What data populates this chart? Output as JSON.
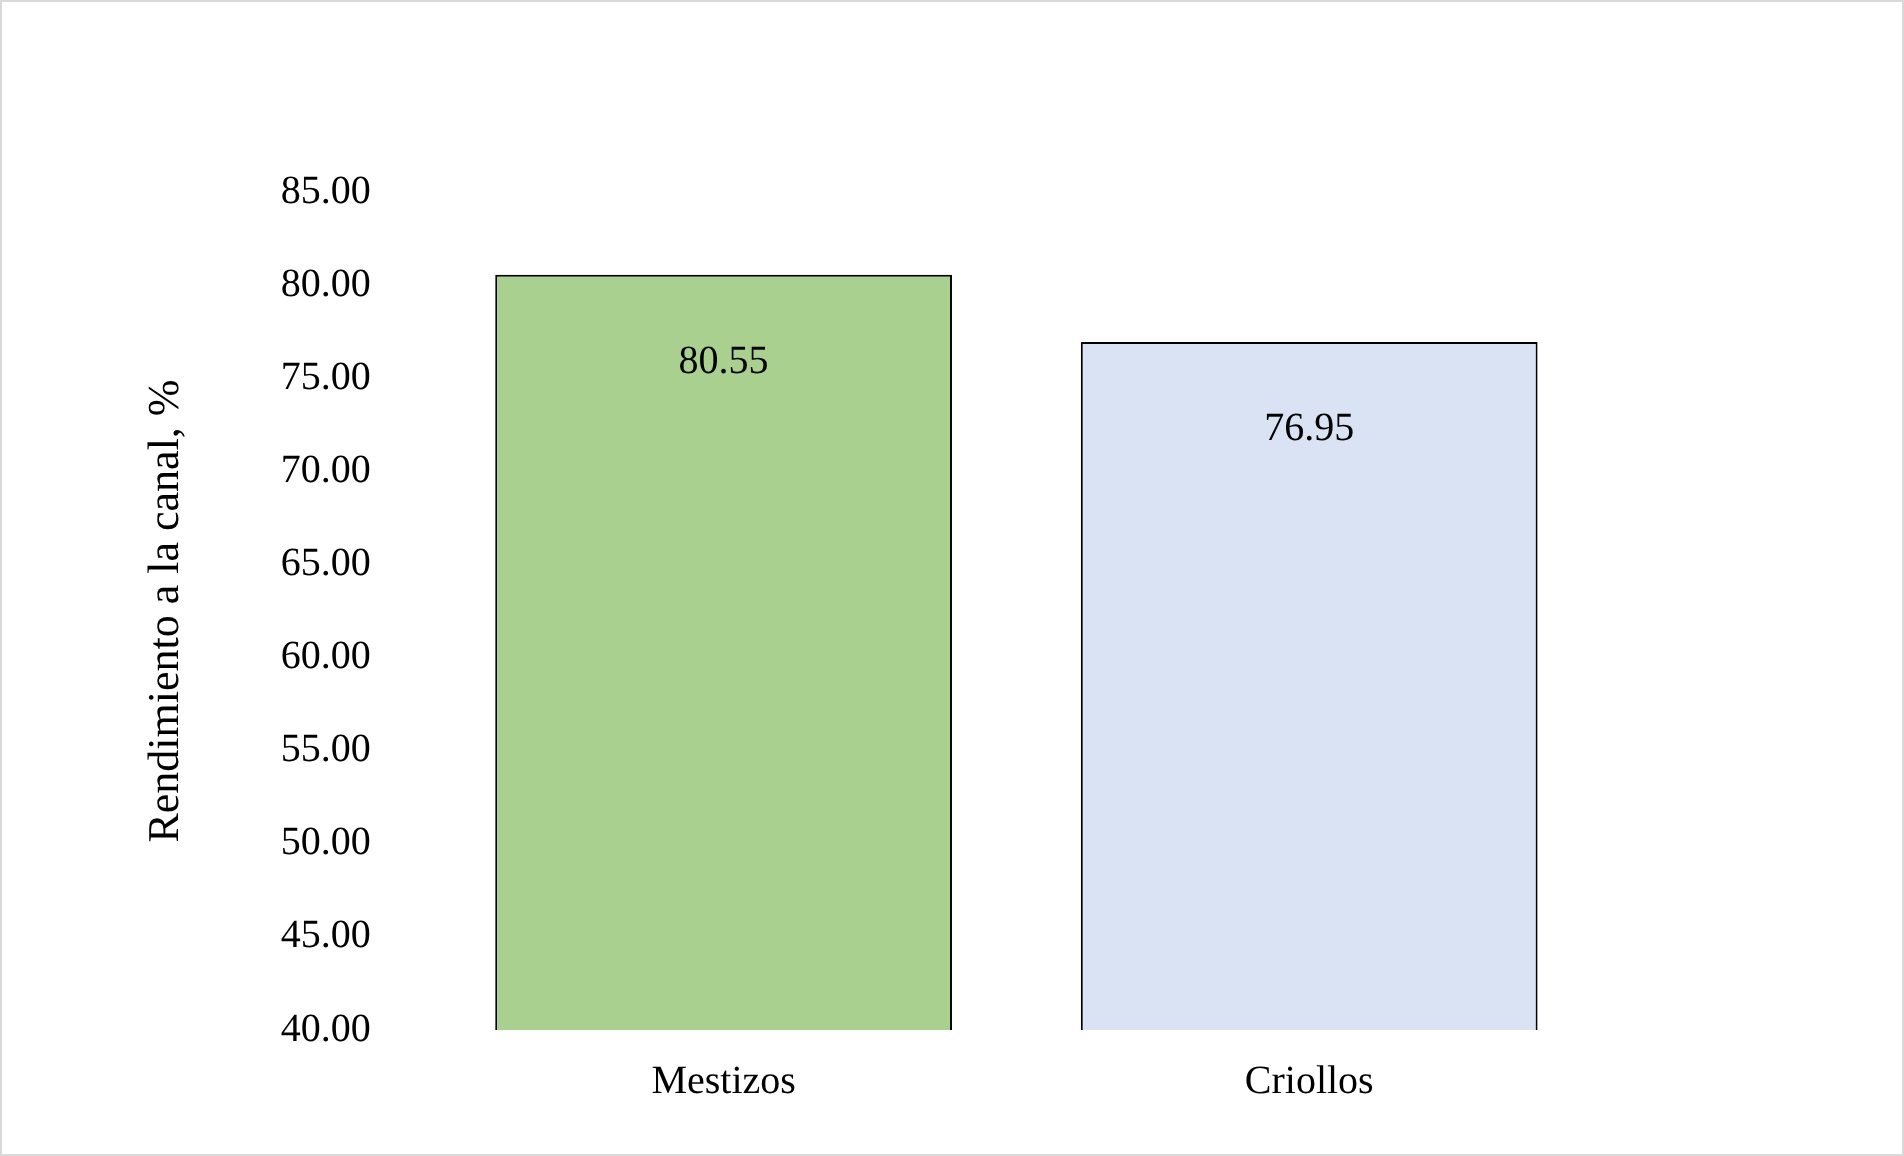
{
  "chart_data": {
    "type": "bar",
    "ylabel": "Rendimiento a la canal, %",
    "categories": [
      "Mestizos",
      "Criollos"
    ],
    "values": [
      80.55,
      76.95
    ],
    "colors": [
      "#a9d08e",
      "#dae3f3"
    ],
    "ylim": [
      40,
      85
    ],
    "yticks": [
      {
        "value": 40,
        "label": "40.00"
      },
      {
        "value": 45,
        "label": "45.00"
      },
      {
        "value": 50,
        "label": "50.00"
      },
      {
        "value": 55,
        "label": "55.00"
      },
      {
        "value": 60,
        "label": "60.00"
      },
      {
        "value": 65,
        "label": "65.00"
      },
      {
        "value": 70,
        "label": "70.00"
      },
      {
        "value": 75,
        "label": "75.00"
      },
      {
        "value": 80,
        "label": "80.00"
      },
      {
        "value": 85,
        "label": "85.00"
      }
    ],
    "data_labels": true,
    "grid": false,
    "legend": false
  }
}
